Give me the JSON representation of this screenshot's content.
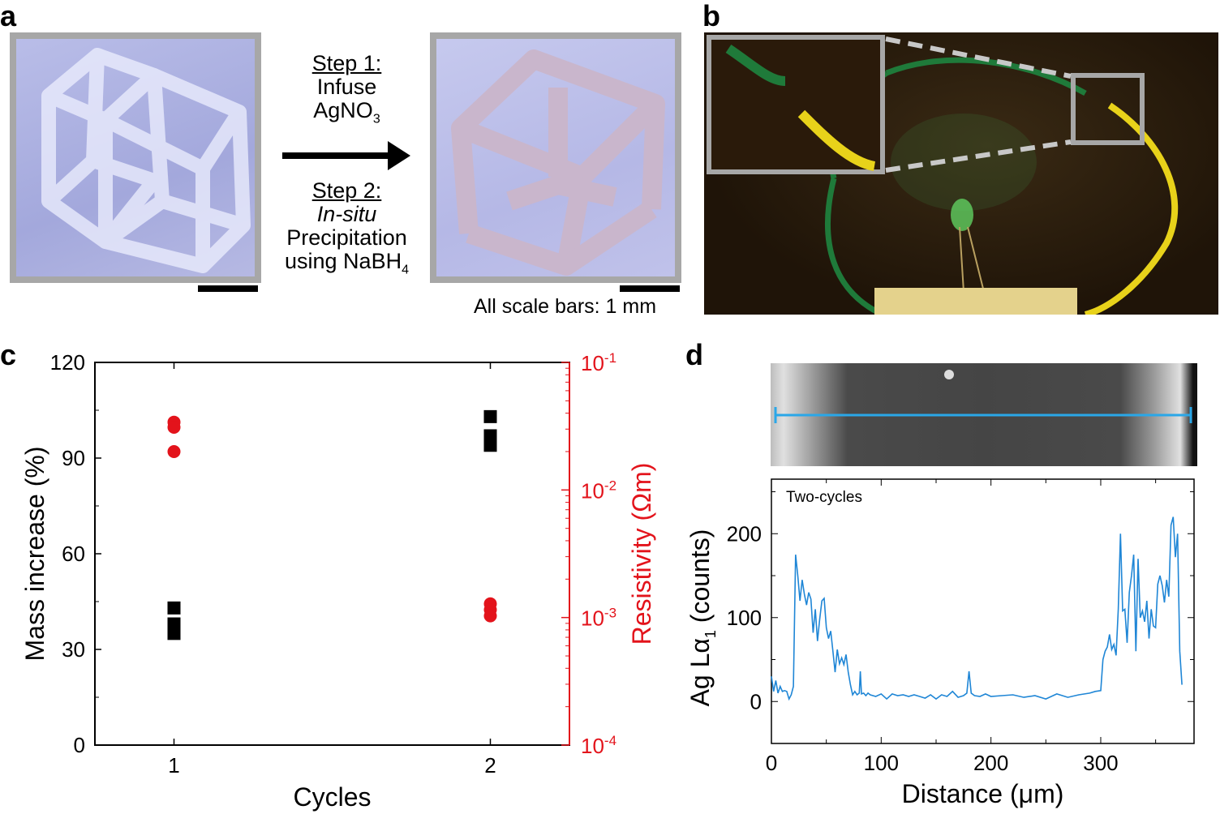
{
  "panels": {
    "a": {
      "label": "a",
      "step1_title": "Step 1:",
      "step1_line1": "Infuse",
      "step1_line2": "AgNO",
      "step1_sub": "3",
      "step2_title": "Step 2:",
      "step2_line1": "In-situ",
      "step2_line2": "Precipitation",
      "step2_line3": "using NaBH",
      "step2_sub": "4",
      "scale_note": "All scale bars: 1 mm"
    },
    "b": {
      "label": "b"
    },
    "c": {
      "label": "c"
    },
    "d": {
      "label": "d"
    }
  },
  "colors": {
    "red_axis": "#e3131b",
    "line_blue": "#1f86d6",
    "photo_frame": "#a7a7a7"
  },
  "chart_data": [
    {
      "type": "scatter",
      "panel": "c",
      "xlabel": "Cycles",
      "ylabel": "Mass increase (%)",
      "y2label": "Resistivity (Ωm)",
      "x_ticks": [
        "1",
        "2"
      ],
      "y_ticks": [
        "0",
        "30",
        "60",
        "90",
        "120"
      ],
      "y2_ticks": [
        {
          "base": "10",
          "exp": "-4"
        },
        {
          "base": "10",
          "exp": "-3"
        },
        {
          "base": "10",
          "exp": "-2"
        },
        {
          "base": "10",
          "exp": "-1"
        }
      ],
      "xlim": [
        0.75,
        2.25
      ],
      "ylim": [
        0,
        120
      ],
      "y2lim": [
        0.0001,
        0.1
      ],
      "y2_scale": "log",
      "series": [
        {
          "axis": "left",
          "marker": "square",
          "color": "#000000",
          "points": [
            [
              1,
              43
            ],
            [
              1,
              38
            ],
            [
              1,
              36
            ],
            [
              1,
              35
            ],
            [
              2,
              103
            ],
            [
              2,
              97
            ],
            [
              2,
              95
            ],
            [
              2,
              94
            ]
          ]
        },
        {
          "axis": "right",
          "marker": "circle",
          "color": "#e3131b",
          "points": [
            [
              1,
              0.034
            ],
            [
              1,
              0.031
            ],
            [
              1,
              0.02
            ],
            [
              2,
              0.00128
            ],
            [
              2,
              0.00115
            ],
            [
              2,
              0.00103
            ]
          ]
        }
      ]
    },
    {
      "type": "line",
      "panel": "d",
      "annotation": "Two-cycles",
      "xlabel": "Distance (μm)",
      "ylabel_main": "Ag Lα",
      "ylabel_sub": "1",
      "ylabel_rest": " (counts)",
      "x_ticks": [
        "0",
        "100",
        "200",
        "300"
      ],
      "y_ticks": [
        "0",
        "100",
        "200"
      ],
      "xlim": [
        0,
        385
      ],
      "ylim": [
        -50,
        265
      ],
      "series": [
        {
          "color": "#1f86d6",
          "x": [
            0,
            2,
            4,
            6,
            8,
            10,
            12,
            14,
            16,
            18,
            20,
            22,
            24,
            26,
            28,
            30,
            32,
            34,
            36,
            38,
            40,
            42,
            44,
            46,
            48,
            50,
            52,
            54,
            56,
            58,
            60,
            62,
            64,
            66,
            68,
            70,
            72,
            74,
            76,
            78,
            80,
            81,
            82,
            84,
            86,
            88,
            90,
            95,
            100,
            105,
            110,
            115,
            120,
            125,
            130,
            135,
            140,
            145,
            150,
            155,
            160,
            165,
            170,
            175,
            178,
            180,
            182,
            185,
            190,
            195,
            200,
            210,
            220,
            230,
            240,
            250,
            260,
            270,
            280,
            290,
            295,
            300,
            302,
            304,
            306,
            308,
            310,
            312,
            314,
            316,
            318,
            320,
            322,
            324,
            326,
            328,
            330,
            332,
            334,
            336,
            338,
            340,
            342,
            344,
            346,
            348,
            350,
            352,
            354,
            356,
            358,
            360,
            362,
            364,
            366,
            368,
            370,
            372,
            374
          ],
          "y": [
            30,
            12,
            25,
            10,
            18,
            12,
            13,
            12,
            3,
            8,
            18,
            175,
            150,
            120,
            145,
            128,
            115,
            130,
            122,
            82,
            110,
            72,
            98,
            120,
            123,
            88,
            75,
            84,
            60,
            35,
            62,
            45,
            52,
            44,
            56,
            35,
            20,
            8,
            12,
            8,
            10,
            36,
            9,
            10,
            7,
            10,
            8,
            6,
            9,
            3,
            9,
            7,
            8,
            6,
            8,
            6,
            4,
            8,
            3,
            8,
            6,
            12,
            5,
            7,
            10,
            36,
            10,
            7,
            6,
            9,
            6,
            7,
            8,
            5,
            7,
            3,
            9,
            5,
            8,
            10,
            12,
            13,
            50,
            60,
            65,
            80,
            62,
            68,
            55,
            110,
            200,
            108,
            110,
            70,
            130,
            150,
            175,
            60,
            170,
            100,
            108,
            95,
            120,
            75,
            110,
            90,
            88,
            140,
            150,
            138,
            118,
            145,
            125,
            210,
            220,
            172,
            200,
            60,
            20
          ]
        }
      ]
    }
  ]
}
